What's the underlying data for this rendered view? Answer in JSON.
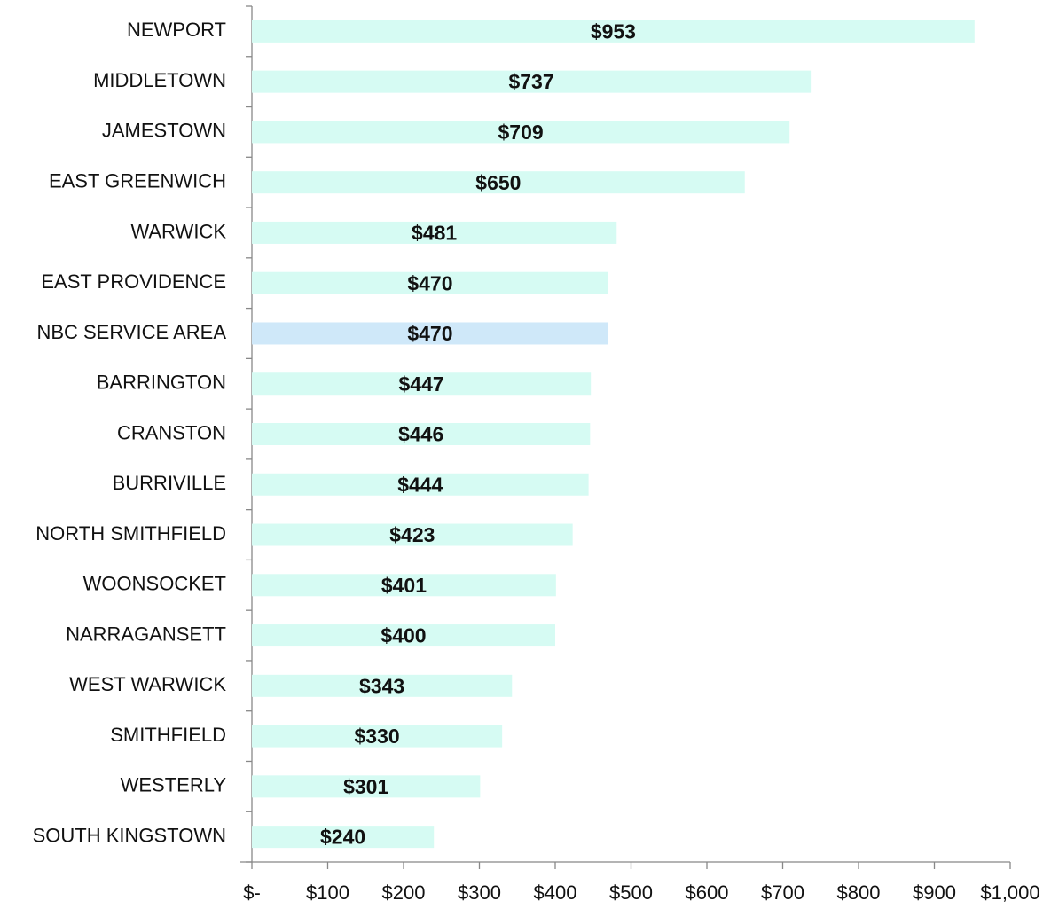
{
  "chart_data": {
    "type": "barh",
    "categories": [
      "NEWPORT",
      "MIDDLETOWN",
      "JAMESTOWN",
      "EAST GREENWICH",
      "WARWICK",
      "EAST PROVIDENCE",
      "NBC SERVICE AREA",
      "BARRINGTON",
      "CRANSTON",
      "BURRIVILLE",
      "NORTH SMITHFIELD",
      "WOONSOCKET",
      "NARRAGANSETT",
      "WEST WARWICK",
      "SMITHFIELD",
      "WESTERLY",
      "SOUTH KINGSTOWN"
    ],
    "values": [
      953,
      737,
      709,
      650,
      481,
      470,
      470,
      447,
      446,
      444,
      423,
      401,
      400,
      343,
      330,
      301,
      240
    ],
    "value_labels": [
      "$953",
      "$737",
      "$709",
      "$650",
      "$481",
      "$470",
      "$470",
      "$447",
      "$446",
      "$444",
      "$423",
      "$401",
      "$400",
      "$343",
      "$330",
      "$301",
      "$240"
    ],
    "colors": [
      "#d6fbf3",
      "#d6fbf3",
      "#d6fbf3",
      "#d6fbf3",
      "#d6fbf3",
      "#d6fbf3",
      "#cfe8f9",
      "#d6fbf3",
      "#d6fbf3",
      "#d6fbf3",
      "#d6fbf3",
      "#d6fbf3",
      "#d6fbf3",
      "#d6fbf3",
      "#d6fbf3",
      "#d6fbf3",
      "#d6fbf3"
    ],
    "xlim": [
      0,
      1000
    ],
    "xticks": [
      {
        "value": 0,
        "label": "$-"
      },
      {
        "value": 100,
        "label": "$100"
      },
      {
        "value": 200,
        "label": "$200"
      },
      {
        "value": 300,
        "label": "$300"
      },
      {
        "value": 400,
        "label": "$400"
      },
      {
        "value": 500,
        "label": "$500"
      },
      {
        "value": 600,
        "label": "$600"
      },
      {
        "value": 700,
        "label": "$700"
      },
      {
        "value": 800,
        "label": "$800"
      },
      {
        "value": 900,
        "label": "$900"
      },
      {
        "value": 1000,
        "label": "$1,000"
      }
    ]
  }
}
